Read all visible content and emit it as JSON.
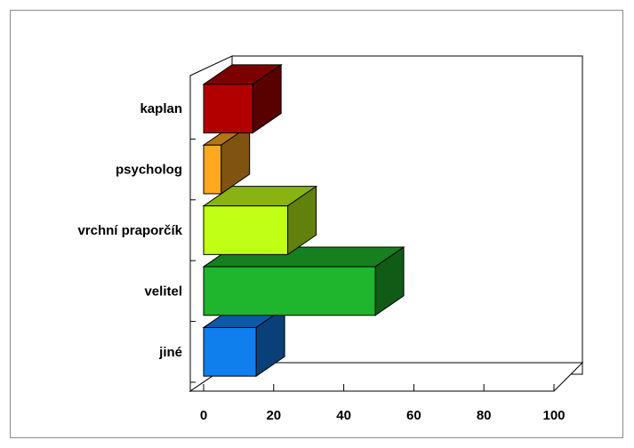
{
  "chart_data": {
    "type": "bar",
    "orientation": "horizontal",
    "three_d": true,
    "categories": [
      "jiné",
      "velitel",
      "vrchní praporčík",
      "psycholog",
      "kaplan"
    ],
    "values": [
      15,
      49,
      24,
      5,
      14
    ],
    "colors": [
      "#0f7fee",
      "#1fb52c",
      "#c2ff17",
      "#ffa820",
      "#b20000"
    ],
    "xlim": [
      0,
      100
    ],
    "x_ticks": [
      "0",
      "20",
      "40",
      "60",
      "80",
      "100"
    ],
    "grid": false,
    "legend": "none",
    "title": "",
    "xlabel": "",
    "ylabel": ""
  }
}
